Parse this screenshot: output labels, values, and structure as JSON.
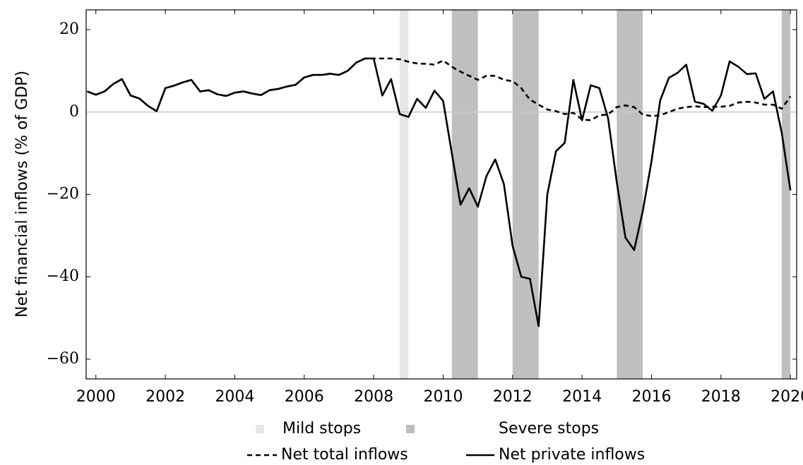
{
  "chart_data": {
    "type": "line",
    "y_label": "Net financial inflows (% of GDP)",
    "x": [
      1999.75,
      2000,
      2000.25,
      2000.5,
      2000.75,
      2001,
      2001.25,
      2001.5,
      2001.75,
      2002,
      2002.25,
      2002.5,
      2002.75,
      2003,
      2003.25,
      2003.5,
      2003.75,
      2004,
      2004.25,
      2004.5,
      2004.75,
      2005,
      2005.25,
      2005.5,
      2005.75,
      2006,
      2006.25,
      2006.5,
      2006.75,
      2007,
      2007.25,
      2007.5,
      2007.75,
      2008,
      2008.25,
      2008.5,
      2008.75,
      2009,
      2009.25,
      2009.5,
      2009.75,
      2010,
      2010.25,
      2010.5,
      2010.75,
      2011,
      2011.25,
      2011.5,
      2011.75,
      2012,
      2012.25,
      2012.5,
      2012.75,
      2013,
      2013.25,
      2013.5,
      2013.75,
      2014,
      2014.25,
      2014.5,
      2014.75,
      2015,
      2015.25,
      2015.5,
      2015.75,
      2016,
      2016.25,
      2016.5,
      2016.75,
      2017,
      2017.25,
      2017.5,
      2017.75,
      2018,
      2018.25,
      2018.5,
      2018.75,
      2019,
      2019.25,
      2019.5,
      2019.75,
      2020
    ],
    "series": [
      {
        "name": "Net total inflows",
        "color": "#000000",
        "dash": "dashed",
        "values": [
          5,
          4.2,
          5,
          6.8,
          8,
          4,
          3.3,
          1.5,
          0.2,
          5.8,
          6.4,
          7.2,
          7.8,
          5,
          5.3,
          4.3,
          3.9,
          4.7,
          5,
          4.5,
          4.1,
          5.3,
          5.6,
          6.2,
          6.6,
          8.4,
          9,
          9,
          9.3,
          9,
          10,
          12,
          13,
          13,
          13,
          13,
          12.8,
          12.2,
          11.8,
          11.7,
          11.5,
          12.5,
          11,
          9.8,
          8.8,
          7.8,
          8.8,
          8.8,
          7.8,
          7.5,
          5.8,
          3,
          1.8,
          0.6,
          0.2,
          -0.5,
          -0.2,
          -1.8,
          -2,
          -0.8,
          -0.6,
          1.2,
          1.6,
          1.2,
          -0.6,
          -1,
          -0.8,
          0,
          0.8,
          1.2,
          1.4,
          1.2,
          1.3,
          1.3,
          1.5,
          2.3,
          2.5,
          2.3,
          1.8,
          1.8,
          0.8,
          3.8
        ]
      },
      {
        "name": "Net private inflows",
        "color": "#000000",
        "dash": "solid",
        "values": [
          5,
          4.2,
          5,
          6.8,
          8,
          4,
          3.3,
          1.5,
          0.2,
          5.8,
          6.4,
          7.2,
          7.8,
          5,
          5.3,
          4.3,
          3.9,
          4.7,
          5,
          4.5,
          4.1,
          5.3,
          5.6,
          6.2,
          6.6,
          8.4,
          9,
          9,
          9.3,
          9,
          10,
          12,
          13,
          13,
          4,
          8,
          -0.5,
          -1.2,
          3.2,
          1,
          5.2,
          2.7,
          -10,
          -22.5,
          -18.5,
          -23,
          -15.5,
          -11.5,
          -17.5,
          -32.5,
          -40,
          -40.5,
          -52,
          -20,
          -9.5,
          -7.5,
          7.8,
          -2,
          6.5,
          5.8,
          -1.5,
          -17,
          -30.5,
          -33.5,
          -24,
          -12,
          2.8,
          8.3,
          9.5,
          11.5,
          2.5,
          2,
          0.3,
          4,
          12.3,
          11,
          9.2,
          9.4,
          3.2,
          5,
          -5,
          -19
        ]
      }
    ],
    "shaded_regions": [
      {
        "name": "Mild stops",
        "color": "#e6e6e6",
        "ranges": [
          [
            2008.75,
            2009
          ]
        ]
      },
      {
        "name": "Severe stops",
        "color": "#bfbfbf",
        "ranges": [
          [
            2010.25,
            2011
          ],
          [
            2012,
            2012.75
          ],
          [
            2015,
            2015.75
          ],
          [
            2019.75,
            2020
          ]
        ]
      }
    ],
    "xlim": [
      1999.72,
      2020.18
    ],
    "xticks": [
      2000,
      2002,
      2004,
      2006,
      2008,
      2010,
      2012,
      2014,
      2016,
      2018,
      2020
    ],
    "ylim": [
      -64.8,
      24.8
    ],
    "yticks": [
      20,
      0,
      {
        "value": -20,
        "label": "−20"
      },
      {
        "value": -40,
        "label": "−40"
      },
      {
        "value": -60,
        "label": "−60"
      }
    ],
    "zero_line": true
  }
}
